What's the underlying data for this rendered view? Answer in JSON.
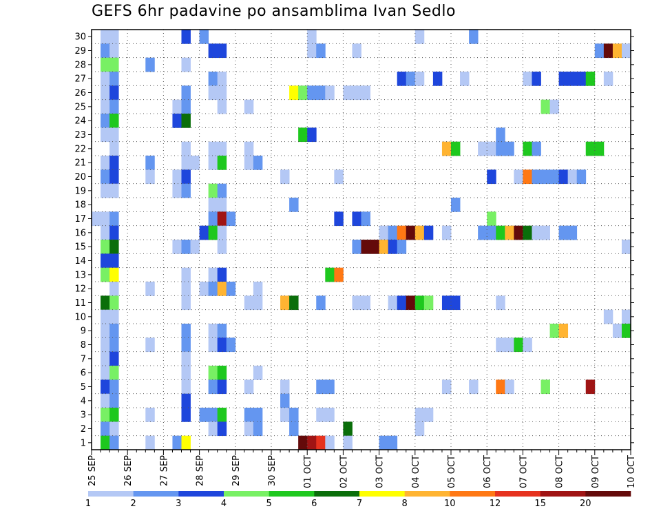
{
  "chart_data": {
    "type": "heatmap",
    "title": "GEFS 6hr padavine po ansamblima Ivan Sedlo",
    "xlabel": "",
    "ylabel": "",
    "x_tick_labels": [
      "25 SEP",
      "26 SEP",
      "27 SEP",
      "28 SEP",
      "29 SEP",
      "30 SEP",
      "01 OCT",
      "02 OCT",
      "03 OCT",
      "04 OCT",
      "05 OCT",
      "06 OCT",
      "07 OCT",
      "08 OCT",
      "09 OCT",
      "10 OCT"
    ],
    "y_tick_labels": [
      "1",
      "2",
      "3",
      "4",
      "5",
      "6",
      "7",
      "8",
      "9",
      "10",
      "11",
      "12",
      "13",
      "14",
      "15",
      "16",
      "17",
      "18",
      "19",
      "20",
      "21",
      "22",
      "23",
      "24",
      "25",
      "26",
      "27",
      "28",
      "29",
      "30"
    ],
    "xlim": [
      0,
      60
    ],
    "ylim": [
      0.5,
      30.5
    ],
    "grid": true,
    "colorbar": {
      "levels": [
        "1",
        "2",
        "3",
        "4",
        "5",
        "6",
        "7",
        "8",
        "10",
        "12",
        "15",
        "20"
      ],
      "colors": [
        "#b4c8f5",
        "#6496f0",
        "#1e46dc",
        "#78f064",
        "#1ec81e",
        "#0a6e0a",
        "#ffff00",
        "#ffb432",
        "#ff7814",
        "#e6321e",
        "#a01414",
        "#640a0a"
      ]
    },
    "cells": [
      [
        1,
        30,
        0
      ],
      [
        2,
        30,
        0
      ],
      [
        10,
        30,
        2
      ],
      [
        12,
        30,
        1
      ],
      [
        24,
        30,
        0
      ],
      [
        36,
        30,
        0
      ],
      [
        42,
        30,
        1
      ],
      [
        1,
        29,
        1
      ],
      [
        2,
        29,
        0
      ],
      [
        13,
        29,
        2
      ],
      [
        14,
        29,
        2
      ],
      [
        24,
        29,
        0
      ],
      [
        25,
        29,
        1
      ],
      [
        29,
        29,
        0
      ],
      [
        56,
        29,
        1
      ],
      [
        57,
        29,
        11
      ],
      [
        58,
        29,
        7
      ],
      [
        59,
        29,
        0
      ],
      [
        1,
        28,
        3
      ],
      [
        2,
        28,
        3
      ],
      [
        6,
        28,
        1
      ],
      [
        10,
        28,
        0
      ],
      [
        1,
        27,
        0
      ],
      [
        2,
        27,
        1
      ],
      [
        13,
        27,
        1
      ],
      [
        14,
        27,
        0
      ],
      [
        34,
        27,
        2
      ],
      [
        35,
        27,
        1
      ],
      [
        36,
        27,
        0
      ],
      [
        38,
        27,
        2
      ],
      [
        41,
        27,
        0
      ],
      [
        48,
        27,
        0
      ],
      [
        49,
        27,
        2
      ],
      [
        52,
        27,
        2
      ],
      [
        53,
        27,
        2
      ],
      [
        54,
        27,
        2
      ],
      [
        55,
        27,
        4
      ],
      [
        57,
        27,
        0
      ],
      [
        1,
        26,
        0
      ],
      [
        2,
        26,
        2
      ],
      [
        10,
        26,
        1
      ],
      [
        13,
        26,
        0
      ],
      [
        14,
        26,
        0
      ],
      [
        22,
        26,
        6
      ],
      [
        23,
        26,
        3
      ],
      [
        24,
        26,
        1
      ],
      [
        25,
        26,
        1
      ],
      [
        26,
        26,
        0
      ],
      [
        28,
        26,
        0
      ],
      [
        29,
        26,
        0
      ],
      [
        30,
        26,
        0
      ],
      [
        1,
        25,
        0
      ],
      [
        2,
        25,
        1
      ],
      [
        9,
        25,
        0
      ],
      [
        10,
        25,
        1
      ],
      [
        14,
        25,
        0
      ],
      [
        17,
        25,
        0
      ],
      [
        50,
        25,
        3
      ],
      [
        51,
        25,
        0
      ],
      [
        1,
        24,
        1
      ],
      [
        2,
        24,
        4
      ],
      [
        9,
        24,
        2
      ],
      [
        10,
        24,
        5
      ],
      [
        1,
        23,
        0
      ],
      [
        2,
        23,
        0
      ],
      [
        23,
        23,
        4
      ],
      [
        24,
        23,
        2
      ],
      [
        45,
        23,
        1
      ],
      [
        2,
        22,
        0
      ],
      [
        10,
        22,
        0
      ],
      [
        13,
        22,
        0
      ],
      [
        14,
        22,
        0
      ],
      [
        17,
        22,
        0
      ],
      [
        39,
        22,
        7
      ],
      [
        40,
        22,
        4
      ],
      [
        43,
        22,
        0
      ],
      [
        44,
        22,
        0
      ],
      [
        45,
        22,
        1
      ],
      [
        46,
        22,
        1
      ],
      [
        48,
        22,
        4
      ],
      [
        49,
        22,
        1
      ],
      [
        55,
        22,
        4
      ],
      [
        56,
        22,
        4
      ],
      [
        1,
        21,
        0
      ],
      [
        2,
        21,
        2
      ],
      [
        6,
        21,
        1
      ],
      [
        10,
        21,
        0
      ],
      [
        11,
        21,
        0
      ],
      [
        13,
        21,
        0
      ],
      [
        14,
        21,
        4
      ],
      [
        17,
        21,
        0
      ],
      [
        18,
        21,
        1
      ],
      [
        1,
        20,
        1
      ],
      [
        2,
        20,
        2
      ],
      [
        6,
        20,
        0
      ],
      [
        9,
        20,
        0
      ],
      [
        10,
        20,
        2
      ],
      [
        21,
        20,
        0
      ],
      [
        27,
        20,
        0
      ],
      [
        44,
        20,
        2
      ],
      [
        47,
        20,
        0
      ],
      [
        48,
        20,
        8
      ],
      [
        49,
        20,
        1
      ],
      [
        50,
        20,
        1
      ],
      [
        51,
        20,
        1
      ],
      [
        52,
        20,
        2
      ],
      [
        53,
        20,
        0
      ],
      [
        54,
        20,
        1
      ],
      [
        1,
        19,
        0
      ],
      [
        2,
        19,
        0
      ],
      [
        9,
        19,
        0
      ],
      [
        10,
        19,
        1
      ],
      [
        13,
        19,
        3
      ],
      [
        14,
        19,
        1
      ],
      [
        13,
        18,
        0
      ],
      [
        14,
        18,
        0
      ],
      [
        22,
        18,
        1
      ],
      [
        40,
        18,
        1
      ],
      [
        0,
        17,
        0
      ],
      [
        1,
        17,
        0
      ],
      [
        2,
        17,
        1
      ],
      [
        13,
        17,
        1
      ],
      [
        14,
        17,
        10
      ],
      [
        15,
        17,
        1
      ],
      [
        27,
        17,
        2
      ],
      [
        29,
        17,
        2
      ],
      [
        30,
        17,
        1
      ],
      [
        44,
        17,
        3
      ],
      [
        1,
        16,
        0
      ],
      [
        2,
        16,
        2
      ],
      [
        12,
        16,
        2
      ],
      [
        13,
        16,
        4
      ],
      [
        14,
        16,
        0
      ],
      [
        32,
        16,
        0
      ],
      [
        33,
        16,
        1
      ],
      [
        34,
        16,
        8
      ],
      [
        35,
        16,
        11
      ],
      [
        36,
        16,
        7
      ],
      [
        37,
        16,
        2
      ],
      [
        39,
        16,
        0
      ],
      [
        43,
        16,
        1
      ],
      [
        44,
        16,
        1
      ],
      [
        45,
        16,
        4
      ],
      [
        46,
        16,
        7
      ],
      [
        47,
        16,
        11
      ],
      [
        48,
        16,
        5
      ],
      [
        49,
        16,
        0
      ],
      [
        50,
        16,
        0
      ],
      [
        52,
        16,
        1
      ],
      [
        53,
        16,
        1
      ],
      [
        1,
        15,
        3
      ],
      [
        2,
        15,
        5
      ],
      [
        9,
        15,
        0
      ],
      [
        10,
        15,
        1
      ],
      [
        11,
        15,
        0
      ],
      [
        14,
        15,
        0
      ],
      [
        29,
        15,
        1
      ],
      [
        30,
        15,
        11
      ],
      [
        31,
        15,
        11
      ],
      [
        32,
        15,
        7
      ],
      [
        33,
        15,
        2
      ],
      [
        34,
        15,
        1
      ],
      [
        59,
        15,
        0
      ],
      [
        1,
        14,
        2
      ],
      [
        2,
        14,
        2
      ],
      [
        1,
        13,
        3
      ],
      [
        2,
        13,
        6
      ],
      [
        10,
        13,
        0
      ],
      [
        13,
        13,
        0
      ],
      [
        14,
        13,
        2
      ],
      [
        26,
        13,
        4
      ],
      [
        27,
        13,
        8
      ],
      [
        2,
        12,
        0
      ],
      [
        6,
        12,
        0
      ],
      [
        10,
        12,
        0
      ],
      [
        12,
        12,
        0
      ],
      [
        13,
        12,
        1
      ],
      [
        14,
        12,
        7
      ],
      [
        15,
        12,
        1
      ],
      [
        18,
        12,
        0
      ],
      [
        1,
        11,
        5
      ],
      [
        2,
        11,
        3
      ],
      [
        10,
        11,
        0
      ],
      [
        17,
        11,
        0
      ],
      [
        18,
        11,
        0
      ],
      [
        21,
        11,
        7
      ],
      [
        22,
        11,
        5
      ],
      [
        25,
        11,
        1
      ],
      [
        29,
        11,
        0
      ],
      [
        30,
        11,
        0
      ],
      [
        33,
        11,
        0
      ],
      [
        34,
        11,
        2
      ],
      [
        35,
        11,
        11
      ],
      [
        36,
        11,
        4
      ],
      [
        37,
        11,
        3
      ],
      [
        39,
        11,
        2
      ],
      [
        40,
        11,
        2
      ],
      [
        45,
        11,
        0
      ],
      [
        1,
        10,
        0
      ],
      [
        2,
        10,
        0
      ],
      [
        57,
        10,
        0
      ],
      [
        59,
        10,
        0
      ],
      [
        1,
        9,
        0
      ],
      [
        2,
        9,
        1
      ],
      [
        10,
        9,
        1
      ],
      [
        13,
        9,
        0
      ],
      [
        14,
        9,
        1
      ],
      [
        51,
        9,
        3
      ],
      [
        52,
        9,
        7
      ],
      [
        58,
        9,
        0
      ],
      [
        59,
        9,
        4
      ],
      [
        1,
        8,
        0
      ],
      [
        2,
        8,
        1
      ],
      [
        6,
        8,
        0
      ],
      [
        10,
        8,
        1
      ],
      [
        13,
        8,
        0
      ],
      [
        14,
        8,
        2
      ],
      [
        15,
        8,
        1
      ],
      [
        45,
        8,
        0
      ],
      [
        46,
        8,
        0
      ],
      [
        47,
        8,
        4
      ],
      [
        48,
        8,
        0
      ],
      [
        1,
        7,
        0
      ],
      [
        2,
        7,
        2
      ],
      [
        10,
        7,
        0
      ],
      [
        1,
        6,
        0
      ],
      [
        2,
        6,
        3
      ],
      [
        10,
        6,
        0
      ],
      [
        13,
        6,
        3
      ],
      [
        14,
        6,
        4
      ],
      [
        18,
        6,
        0
      ],
      [
        1,
        5,
        2
      ],
      [
        2,
        5,
        1
      ],
      [
        10,
        5,
        0
      ],
      [
        13,
        5,
        1
      ],
      [
        14,
        5,
        2
      ],
      [
        17,
        5,
        0
      ],
      [
        21,
        5,
        0
      ],
      [
        25,
        5,
        1
      ],
      [
        26,
        5,
        1
      ],
      [
        39,
        5,
        0
      ],
      [
        42,
        5,
        0
      ],
      [
        45,
        5,
        8
      ],
      [
        46,
        5,
        0
      ],
      [
        50,
        5,
        3
      ],
      [
        55,
        5,
        10
      ],
      [
        1,
        4,
        0
      ],
      [
        2,
        4,
        1
      ],
      [
        10,
        4,
        2
      ],
      [
        21,
        4,
        1
      ],
      [
        1,
        3,
        3
      ],
      [
        2,
        3,
        4
      ],
      [
        6,
        3,
        0
      ],
      [
        10,
        3,
        2
      ],
      [
        12,
        3,
        1
      ],
      [
        13,
        3,
        1
      ],
      [
        14,
        3,
        4
      ],
      [
        17,
        3,
        1
      ],
      [
        18,
        3,
        1
      ],
      [
        21,
        3,
        0
      ],
      [
        22,
        3,
        1
      ],
      [
        25,
        3,
        0
      ],
      [
        26,
        3,
        0
      ],
      [
        36,
        3,
        0
      ],
      [
        37,
        3,
        0
      ],
      [
        1,
        2,
        1
      ],
      [
        2,
        2,
        0
      ],
      [
        13,
        2,
        0
      ],
      [
        14,
        2,
        2
      ],
      [
        17,
        2,
        0
      ],
      [
        18,
        2,
        1
      ],
      [
        22,
        2,
        1
      ],
      [
        28,
        2,
        5
      ],
      [
        36,
        2,
        0
      ],
      [
        1,
        1,
        4
      ],
      [
        2,
        1,
        1
      ],
      [
        6,
        1,
        0
      ],
      [
        9,
        1,
        1
      ],
      [
        10,
        1,
        6
      ],
      [
        23,
        1,
        11
      ],
      [
        24,
        1,
        10
      ],
      [
        25,
        1,
        9
      ],
      [
        26,
        1,
        0
      ],
      [
        28,
        1,
        0
      ],
      [
        32,
        1,
        1
      ],
      [
        33,
        1,
        1
      ]
    ]
  }
}
